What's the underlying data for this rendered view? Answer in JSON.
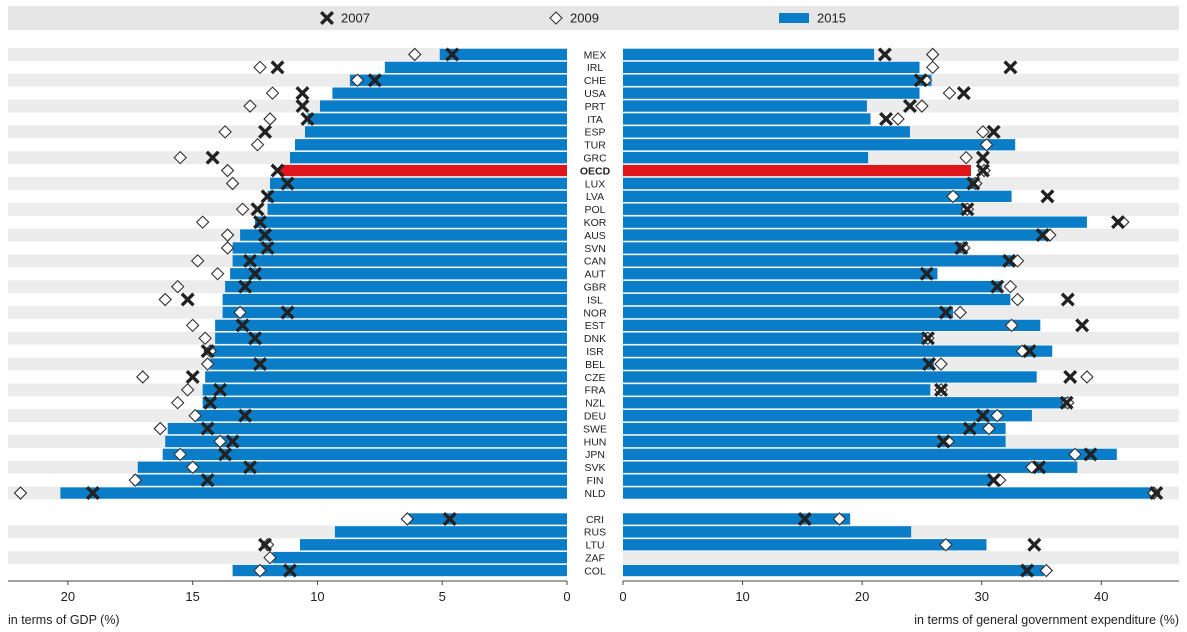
{
  "legend": {
    "items": [
      {
        "label": "2007",
        "marker": "cross",
        "color": "#222222"
      },
      {
        "label": "2009",
        "marker": "diamond",
        "color": "#333333"
      },
      {
        "label": "2015",
        "marker": "bar",
        "color": "#0a7dc8"
      }
    ]
  },
  "colors": {
    "bar": "#0a7dc8",
    "highlight": "#e0151b",
    "legend_bg": "#e6e6e6",
    "stripe": "#ececec"
  },
  "chart_data": [
    {
      "type": "bar",
      "orientation": "horizontal",
      "direction": "reversed",
      "xlabel": "in terms of GDP (%)",
      "xlim": [
        0,
        22.4
      ],
      "xticks": [
        20,
        15,
        10,
        5,
        0
      ],
      "grid": false,
      "legend_position": "top",
      "categories": [
        "MEX",
        "IRL",
        "CHE",
        "USA",
        "PRT",
        "ITA",
        "ESP",
        "TUR",
        "GRC",
        "OECD",
        "LUX",
        "LVA",
        "POL",
        "KOR",
        "AUS",
        "SVN",
        "CAN",
        "AUT",
        "GBR",
        "ISL",
        "NOR",
        "EST",
        "DNK",
        "ISR",
        "BEL",
        "CZE",
        "FRA",
        "NZL",
        "DEU",
        "SWE",
        "HUN",
        "JPN",
        "SVK",
        "FIN",
        "NLD",
        "CRI",
        "RUS",
        "LTU",
        "ZAF",
        "COL"
      ],
      "series": [
        {
          "name": "2015",
          "values": [
            5.1,
            7.3,
            8.7,
            9.4,
            9.9,
            10.4,
            10.5,
            10.9,
            11.1,
            11.5,
            11.9,
            12.0,
            12.0,
            12.5,
            13.1,
            13.4,
            13.4,
            13.5,
            13.7,
            13.8,
            13.8,
            14.1,
            14.1,
            14.3,
            14.3,
            14.5,
            14.6,
            14.6,
            14.9,
            16.0,
            16.1,
            16.2,
            17.2,
            17.4,
            20.3,
            6.4,
            9.3,
            10.7,
            11.8,
            13.4
          ]
        },
        {
          "name": "2007",
          "values": [
            4.6,
            11.6,
            7.7,
            10.6,
            10.6,
            10.4,
            12.1,
            null,
            14.2,
            11.6,
            11.2,
            12.0,
            12.4,
            12.3,
            12.1,
            12.0,
            12.7,
            12.5,
            12.9,
            15.2,
            11.2,
            13.0,
            12.5,
            14.4,
            12.3,
            15.0,
            13.9,
            14.3,
            12.9,
            14.4,
            13.4,
            13.7,
            12.7,
            14.4,
            19.0,
            4.7,
            null,
            12.1,
            null,
            11.1
          ]
        },
        {
          "name": "2009",
          "values": [
            6.1,
            12.3,
            8.4,
            11.8,
            12.7,
            11.9,
            13.7,
            12.4,
            15.5,
            13.6,
            13.4,
            null,
            13.0,
            14.6,
            13.6,
            13.6,
            14.8,
            14.0,
            15.6,
            16.1,
            13.1,
            15.0,
            14.5,
            14.3,
            14.4,
            17.0,
            15.2,
            15.6,
            14.9,
            16.3,
            13.9,
            15.5,
            15.0,
            17.3,
            21.9,
            6.4,
            null,
            12.0,
            11.9,
            12.3
          ]
        }
      ]
    },
    {
      "type": "bar",
      "orientation": "horizontal",
      "xlabel": "in terms of general government expenditure (%)",
      "xlim": [
        0,
        46.5
      ],
      "xticks": [
        0,
        10,
        20,
        30,
        40
      ],
      "grid": false,
      "legend_position": "top",
      "categories": [
        "MEX",
        "IRL",
        "CHE",
        "USA",
        "PRT",
        "ITA",
        "ESP",
        "TUR",
        "GRC",
        "OECD",
        "LUX",
        "LVA",
        "POL",
        "KOR",
        "AUS",
        "SVN",
        "CAN",
        "AUT",
        "GBR",
        "ISL",
        "NOR",
        "EST",
        "DNK",
        "ISR",
        "BEL",
        "CZE",
        "FRA",
        "NZL",
        "DEU",
        "SWE",
        "HUN",
        "JPN",
        "SVK",
        "FIN",
        "NLD",
        "CRI",
        "RUS",
        "LTU",
        "ZAF",
        "COL"
      ],
      "series": [
        {
          "name": "2015",
          "values": [
            21.0,
            24.8,
            25.8,
            24.8,
            20.4,
            20.7,
            24.0,
            32.8,
            20.5,
            29.1,
            29.7,
            32.5,
            28.9,
            38.8,
            35.7,
            28.3,
            32.5,
            26.3,
            31.7,
            32.4,
            27.6,
            34.9,
            25.5,
            35.9,
            26.0,
            34.6,
            25.7,
            37.1,
            34.2,
            32.0,
            32.0,
            41.3,
            38.0,
            30.8,
            44.5,
            19.0,
            24.1,
            30.4,
            null,
            35.2
          ]
        },
        {
          "name": "2007",
          "values": [
            21.9,
            32.4,
            24.9,
            28.5,
            24.0,
            22.0,
            31.0,
            null,
            30.1,
            30.1,
            29.3,
            35.5,
            28.8,
            41.4,
            35.1,
            28.3,
            32.3,
            25.4,
            31.3,
            37.2,
            27.0,
            38.4,
            25.5,
            34.0,
            25.6,
            37.4,
            26.6,
            37.1,
            30.1,
            29.0,
            26.8,
            39.1,
            34.8,
            31.0,
            44.6,
            15.2,
            null,
            34.4,
            null,
            33.8
          ]
        },
        {
          "name": "2009",
          "values": [
            25.9,
            25.9,
            25.3,
            27.3,
            25.0,
            23.0,
            30.1,
            30.4,
            28.7,
            30.2,
            29.5,
            27.6,
            28.8,
            41.8,
            35.7,
            28.5,
            33.0,
            null,
            32.4,
            33.0,
            28.2,
            32.5,
            25.5,
            33.4,
            26.6,
            38.8,
            26.6,
            37.2,
            31.3,
            30.6,
            27.2,
            37.8,
            34.2,
            31.5,
            44.4,
            18.1,
            null,
            27.0,
            null,
            35.4
          ]
        }
      ]
    }
  ]
}
